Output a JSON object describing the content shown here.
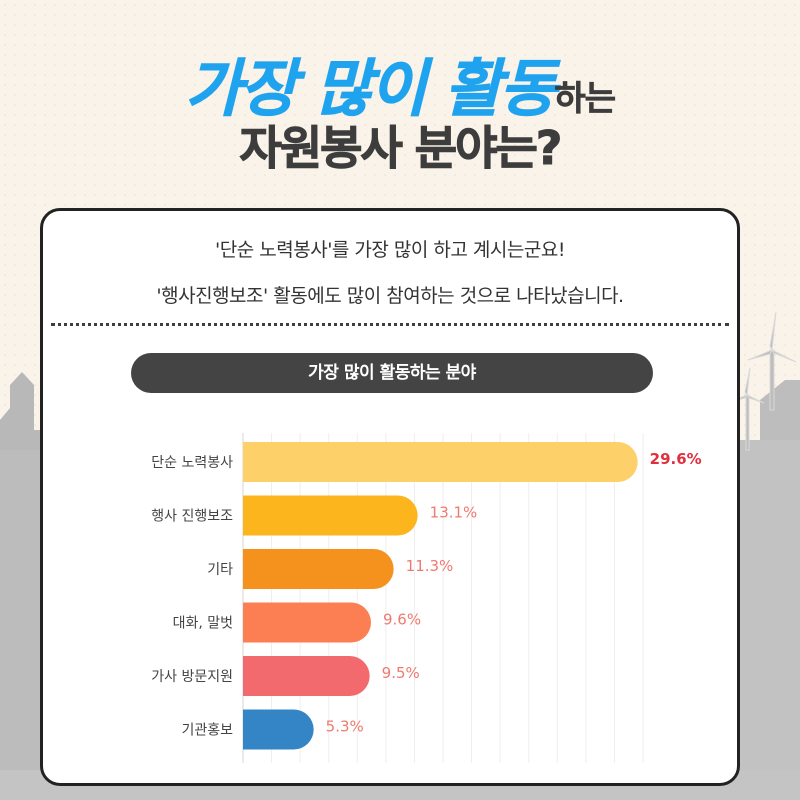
{
  "header": {
    "title_highlight": "가장 많이 활동",
    "title_suffix": "하는",
    "title_line2": "자원봉사 분야는?"
  },
  "card": {
    "line1": "'단순 노력봉사'를 가장 많이 하고 계시는군요!",
    "line2": "'행사진행보조' 활동에도 많이 참여하는 것으로  나타났습니다.",
    "pill_label": "가장 많이 활동하는 분야"
  },
  "colors": {
    "title_blue": "#1fa3ef",
    "title_dark": "#3d3d3d",
    "top_value": "#e0303e",
    "value_label": "#ef7a6f"
  },
  "chart_data": {
    "type": "bar",
    "orientation": "horizontal",
    "title": "가장 많이 활동하는 분야",
    "categories": [
      "단순 노력봉사",
      "행사 진행보조",
      "기타",
      "대화, 말벗",
      "가사 방문지원",
      "기관홍보"
    ],
    "values": [
      29.6,
      13.1,
      11.3,
      9.6,
      9.5,
      5.3
    ],
    "value_labels": [
      "29.6%",
      "13.1%",
      "11.3%",
      "9.6%",
      "9.5%",
      "5.3%"
    ],
    "bar_colors": [
      "#fdd069",
      "#fcb51c",
      "#f5921e",
      "#fb7f52",
      "#f26a6e",
      "#3485c6"
    ],
    "xlim": [
      0,
      30
    ],
    "grid": true,
    "unit": "%"
  }
}
